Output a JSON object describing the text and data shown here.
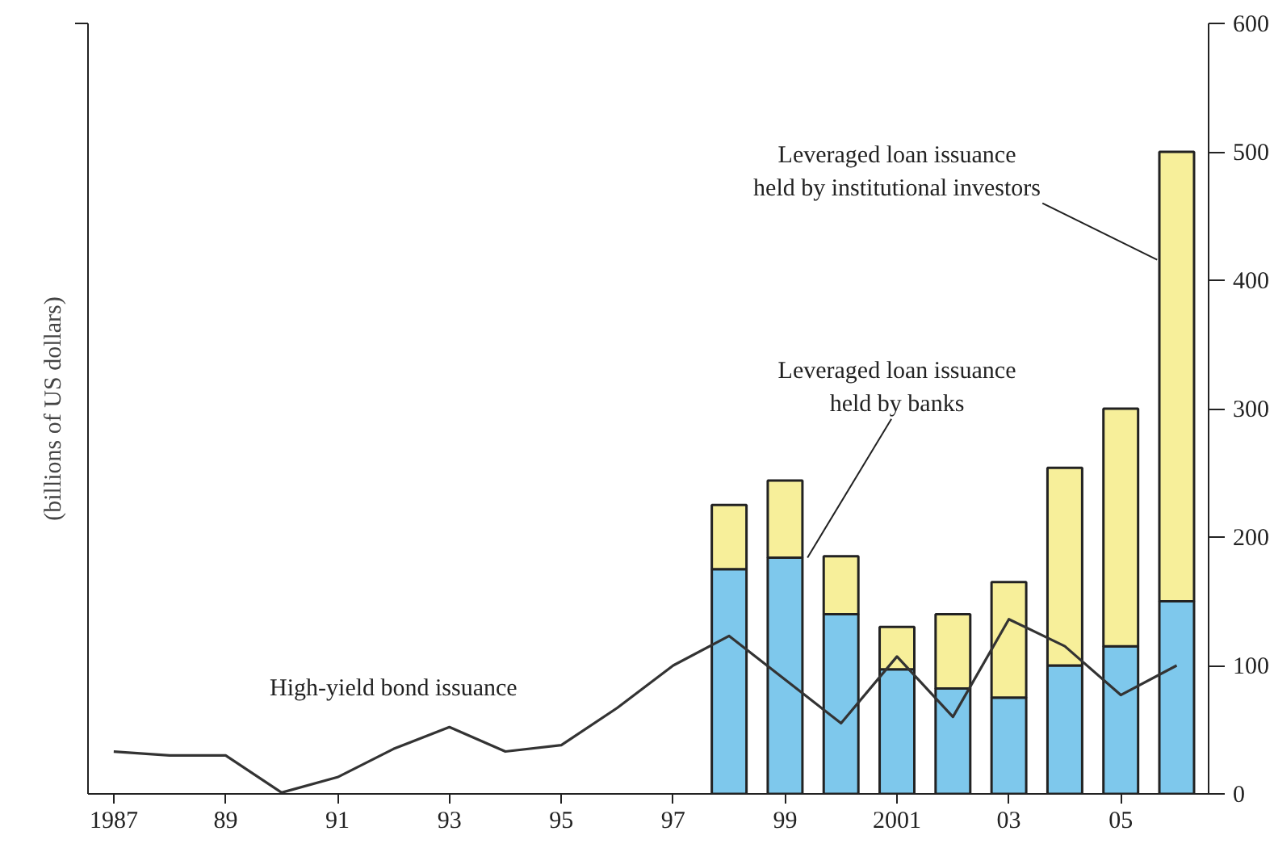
{
  "chart_data": {
    "type": "bar",
    "stacked": true,
    "ylabel": "(billions of US dollars)",
    "xlim": [
      1986.54,
      2006.57
    ],
    "ylim": [
      0,
      600
    ],
    "xticks": [
      {
        "value": 1987,
        "label": "1987"
      },
      {
        "value": 1989,
        "label": "89"
      },
      {
        "value": 1991,
        "label": "91"
      },
      {
        "value": 1993,
        "label": "93"
      },
      {
        "value": 1995,
        "label": "95"
      },
      {
        "value": 1997,
        "label": "97"
      },
      {
        "value": 1999,
        "label": "99"
      },
      {
        "value": 2001,
        "label": "2001"
      },
      {
        "value": 2003,
        "label": "03"
      },
      {
        "value": 2005,
        "label": "05"
      }
    ],
    "yticks": [
      0,
      100,
      200,
      300,
      400,
      500,
      600
    ],
    "grid": false,
    "annotations": [
      {
        "text": "Leveraged loan issuance\nheld by banks",
        "x": 1999.4,
        "y": 184
      },
      {
        "text": "Leveraged loan issuance\nheld by institutional investors",
        "x": 2005.65,
        "y": 416
      }
    ],
    "series": [
      {
        "color": "#7ec8ec",
        "x": [
          1998,
          1999,
          2000,
          2001,
          2002,
          2003,
          2004,
          2005,
          2006
        ],
        "values": [
          175,
          184,
          140,
          97,
          82,
          75,
          100,
          115,
          150
        ]
      },
      {
        "color": "#f7ef9a",
        "x": [
          1998,
          1999,
          2000,
          2001,
          2002,
          2003,
          2004,
          2005,
          2006
        ],
        "values": [
          50,
          60,
          45,
          33,
          58,
          90,
          154,
          185,
          350
        ]
      },
      {
        "name": "High-yield bond issuance",
        "type": "line",
        "color": "#333333",
        "x": [
          1987,
          1988,
          1989,
          1990,
          1991,
          1992,
          1993,
          1994,
          1995,
          1996,
          1997,
          1998,
          1999,
          2000,
          2001,
          2002,
          2003,
          2004,
          2005,
          2006
        ],
        "values": [
          33,
          30,
          30,
          1,
          13,
          35,
          52,
          33,
          38,
          67,
          100,
          123,
          89,
          55,
          107,
          60,
          136,
          115,
          77,
          100
        ]
      }
    ]
  }
}
